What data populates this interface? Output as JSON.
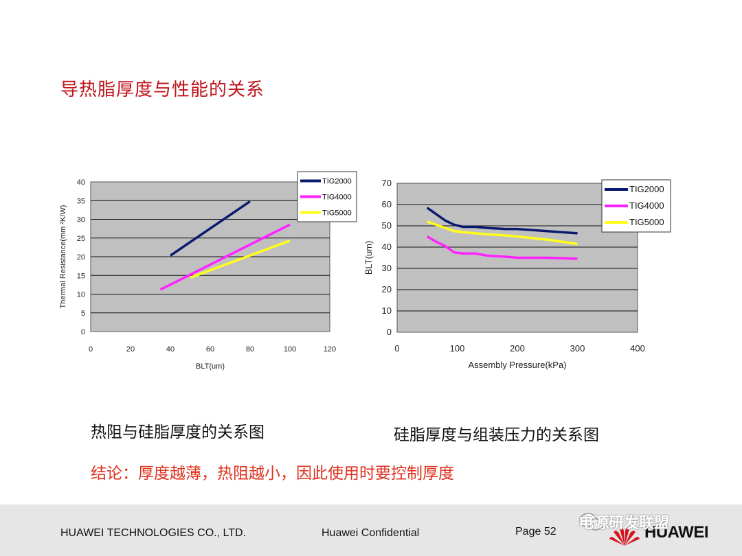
{
  "slide": {
    "title": "导热脂厚度与性能的关系",
    "caption_left": "热阻与硅脂厚度的关系图",
    "caption_right": "硅脂厚度与组装压力的关系图",
    "conclusion": "结论：厚度越薄，热阻越小，因此使用时要控制厚度"
  },
  "footer": {
    "company": "HUAWEI TECHNOLOGIES CO., LTD.",
    "confidential": "Huawei Confidential",
    "page": "Page 52",
    "watermark": "电源研发联盟",
    "logo_text": "HUAWEI"
  },
  "chart_data": [
    {
      "type": "line",
      "xlabel": "BLT(um)",
      "ylabel": "Thermal Resistance(mm ²K/W)",
      "xlim": [
        0,
        120
      ],
      "ylim": [
        0,
        40
      ],
      "xticks": [
        0,
        20,
        40,
        60,
        80,
        100,
        120
      ],
      "yticks": [
        0,
        5,
        10,
        15,
        20,
        25,
        30,
        35,
        40
      ],
      "grid": "horizontal",
      "legend": "top-right",
      "series": [
        {
          "name": "TIG2000",
          "color": "#0a1a6e",
          "x": [
            40,
            80
          ],
          "y": [
            20.3,
            34.8
          ]
        },
        {
          "name": "TIG4000",
          "color": "#ff22ff",
          "x": [
            35,
            100
          ],
          "y": [
            11.2,
            28.6
          ]
        },
        {
          "name": "TIG5000",
          "color": "#ffff1a",
          "x": [
            50,
            100
          ],
          "y": [
            14.4,
            24.3
          ]
        }
      ]
    },
    {
      "type": "line",
      "xlabel": "Assembly Pressure(kPa)",
      "ylabel": "BLT(um)",
      "xlim": [
        0,
        400
      ],
      "ylim": [
        0,
        70
      ],
      "xticks": [
        0,
        100,
        200,
        300,
        400
      ],
      "yticks": [
        0,
        10,
        20,
        30,
        40,
        50,
        60,
        70
      ],
      "grid": "horizontal",
      "legend": "top-right",
      "series": [
        {
          "name": "TIG2000",
          "color": "#0a1a6e",
          "x": [
            50,
            65,
            80,
            95,
            110,
            130,
            150,
            180,
            200,
            250,
            300
          ],
          "y": [
            58.5,
            55.5,
            52.5,
            50.5,
            49.5,
            49.5,
            49,
            48.5,
            48.5,
            47.5,
            46.5
          ]
        },
        {
          "name": "TIG4000",
          "color": "#ff22ff",
          "x": [
            50,
            65,
            80,
            95,
            110,
            130,
            150,
            180,
            200,
            250,
            300
          ],
          "y": [
            45,
            42.5,
            40.5,
            37.5,
            37,
            37,
            36,
            35.5,
            35,
            35,
            34.5
          ]
        },
        {
          "name": "TIG5000",
          "color": "#ffff1a",
          "x": [
            50,
            65,
            80,
            95,
            110,
            130,
            150,
            180,
            200,
            250,
            300
          ],
          "y": [
            52,
            50.5,
            49,
            47.5,
            47,
            46.5,
            46,
            45.5,
            45,
            43.5,
            41.5
          ]
        }
      ]
    }
  ]
}
